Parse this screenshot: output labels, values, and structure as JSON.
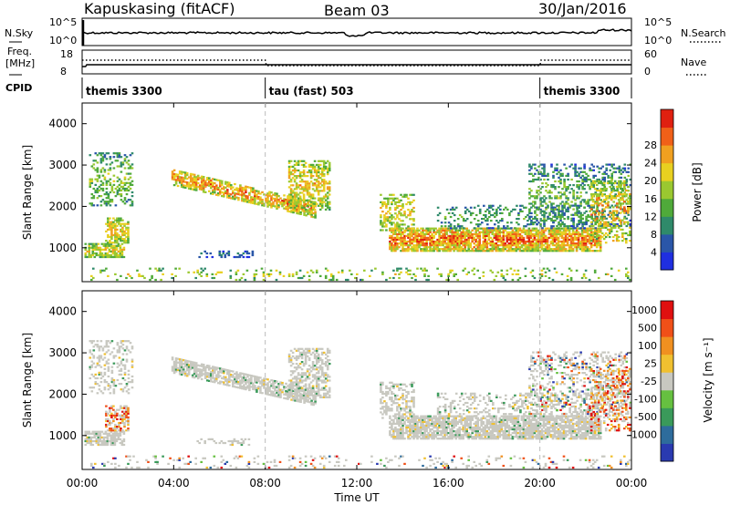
{
  "header": {
    "station": "Kapuskasing (fitACF)",
    "beam": "Beam 03",
    "date": "30/Jan/2016"
  },
  "colors": {
    "plot_bg": "#ffffff",
    "axis": "#000000",
    "gray_scatter": "#c8c8c0"
  },
  "chart_data": [
    {
      "type": "line",
      "name": "noise-panel",
      "left_label": "N.Sky",
      "right_label": "N.Search",
      "left_ticks": [
        "10^5",
        "10^0"
      ],
      "right_ticks": [
        "10^5",
        "10^0"
      ]
    },
    {
      "type": "line",
      "name": "frequency-panel",
      "left_label_1": "Freq.",
      "left_label_2": "[MHz]",
      "right_label": "Nave",
      "left_ticks": [
        "18",
        "8"
      ],
      "right_ticks": [
        "60",
        "0"
      ],
      "cpid_label": "CPID",
      "cpid_segments": [
        {
          "start_hour": 0,
          "end_hour": 8,
          "label": "themis 3300"
        },
        {
          "start_hour": 8,
          "end_hour": 20,
          "label": "tau (fast) 503"
        },
        {
          "start_hour": 20,
          "end_hour": 24,
          "label": "themis 3300"
        }
      ]
    },
    {
      "type": "heatmap",
      "name": "power",
      "ylabel": "Slant Range [km]",
      "ylim": [
        180,
        4500
      ],
      "yticks": [
        1000,
        2000,
        3000,
        4000
      ],
      "colorbar_label": "Power [dB]",
      "colorbar_ticks": [
        "4",
        "8",
        "12",
        "16",
        "20",
        "24",
        "28"
      ],
      "colorbar_colors": [
        "#1f2fe0",
        "#2a56a8",
        "#2f8a6a",
        "#4faa3a",
        "#9ac830",
        "#e8d020",
        "#f0a020",
        "#f06018",
        "#e02010"
      ]
    },
    {
      "type": "heatmap",
      "name": "velocity",
      "ylabel": "Slant Range [km]",
      "xlabel": "Time UT",
      "ylim": [
        180,
        4500
      ],
      "yticks": [
        1000,
        2000,
        3000,
        4000
      ],
      "xticks": [
        "00:00",
        "04:00",
        "08:00",
        "12:00",
        "16:00",
        "20:00",
        "00:00"
      ],
      "colorbar_label": "Velocity [m s⁻¹]",
      "colorbar_ticks": [
        "1000",
        "500",
        "100",
        "25",
        "-25",
        "-100",
        "-500",
        "-1000"
      ],
      "colorbar_colors": [
        "#2a3ab0",
        "#2e6c9c",
        "#3a9a5a",
        "#66c040",
        "#c8c8c0",
        "#f0c030",
        "#f09020",
        "#f05018",
        "#e01010"
      ]
    }
  ]
}
